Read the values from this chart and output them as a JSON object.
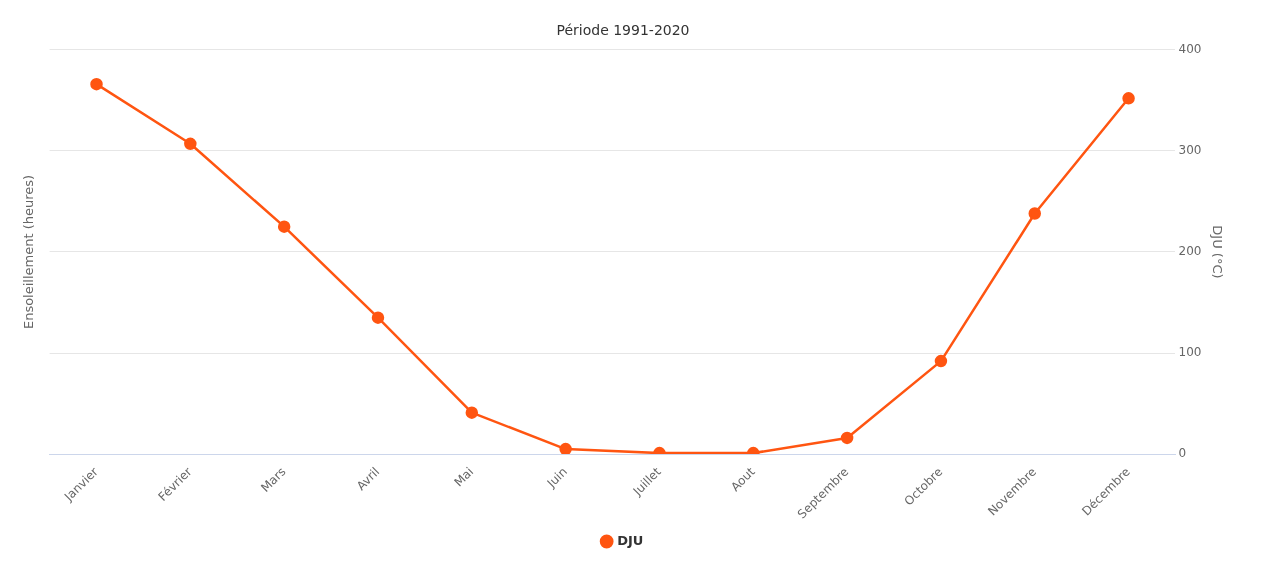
{
  "chart_data": {
    "type": "line",
    "title": "Période 1991-2020",
    "ylabel": "Ensoleillement (heures)",
    "y2label": "DJU (°C)",
    "categories": [
      "Janvier",
      "Février",
      "Mars",
      "Avril",
      "Mai",
      "Juin",
      "Juillet",
      "Aout",
      "Septembre",
      "Octobre",
      "Novembre",
      "Décembre"
    ],
    "series": [
      {
        "name": "DJU",
        "color": "#ff5511",
        "axis": "y2",
        "values": [
          366,
          307,
          225,
          135,
          41,
          5,
          1,
          1,
          16,
          92,
          238,
          352
        ]
      }
    ],
    "y2lim": [
      0,
      400
    ],
    "y2ticks": [
      0,
      100,
      200,
      300,
      400
    ],
    "grid": "y",
    "legend": "bottom",
    "marker": "circle",
    "line_style": "solid"
  }
}
